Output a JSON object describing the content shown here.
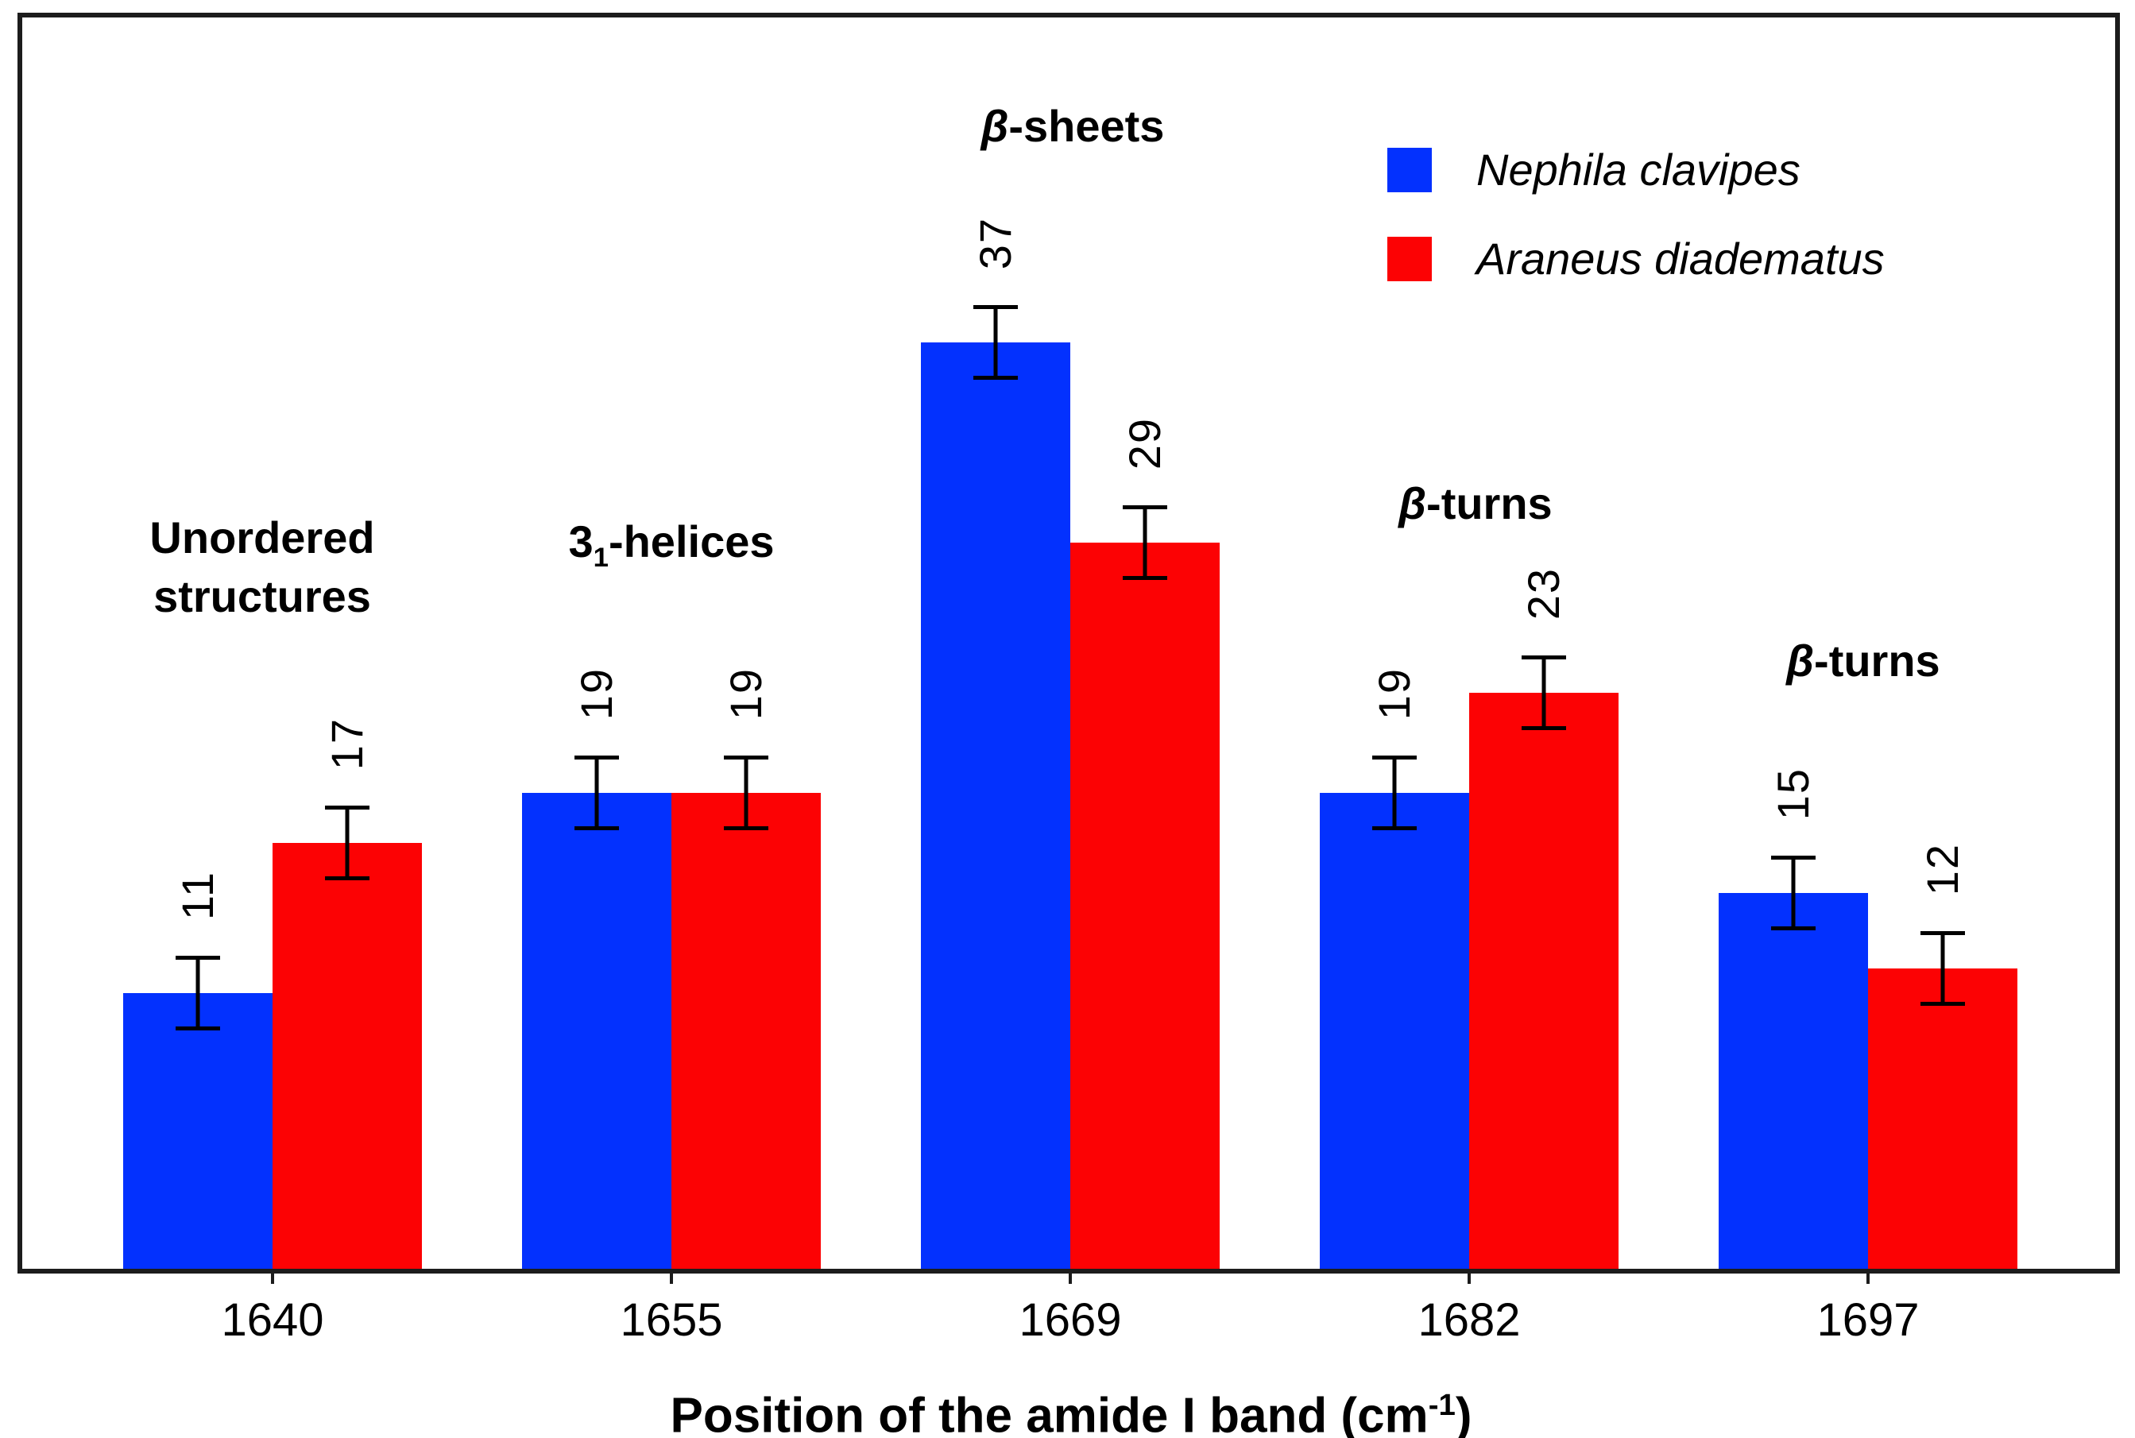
{
  "chart_data": {
    "type": "bar",
    "title": "",
    "categories": [
      "1640",
      "1655",
      "1669",
      "1682",
      "1697"
    ],
    "series": [
      {
        "name": "Nephila clavipes",
        "color": "#0331fe",
        "values": [
          11,
          19,
          37,
          19,
          15
        ],
        "errors": [
          1.5,
          1.5,
          1.5,
          1.5,
          1.5
        ]
      },
      {
        "name": "Araneus diadematus",
        "color": "#fc0204",
        "values": [
          17,
          19,
          29,
          23,
          12
        ],
        "errors": [
          1.5,
          1.5,
          1.5,
          1.5,
          1.5
        ]
      }
    ],
    "bar_value_labels": [
      "11",
      "19",
      "37",
      "19",
      "15",
      "17",
      "19",
      "29",
      "23",
      "12"
    ],
    "xlabel_segments": [
      {
        "t": "Position of the amide I band (cm"
      },
      {
        "t": "-1",
        "sup": true
      },
      {
        "t": ")"
      }
    ],
    "ylim": [
      0,
      50
    ],
    "grid": false,
    "error_bar_color": "#000000",
    "legend_position": "top-right",
    "legend_text_style": "italic",
    "annotations": [
      {
        "lines": [
          [
            {
              "t": "Unordered"
            }
          ],
          [
            {
              "t": "structures"
            }
          ]
        ],
        "x": 330,
        "y": 640
      },
      {
        "lines": [
          [
            {
              "t": "3"
            },
            {
              "t": "1",
              "sub": true
            },
            {
              "t": "-helices"
            }
          ]
        ],
        "x": 845,
        "y": 645
      },
      {
        "lines": [
          [
            {
              "t": "β",
              "italic": true
            },
            {
              "t": "-sheets"
            }
          ]
        ],
        "x": 1350,
        "y": 122
      },
      {
        "lines": [
          [
            {
              "t": "β",
              "italic": true
            },
            {
              "t": "-turns"
            }
          ]
        ],
        "x": 1857,
        "y": 597
      },
      {
        "lines": [
          [
            {
              "t": "β",
              "italic": true
            },
            {
              "t": "-turns"
            }
          ]
        ],
        "x": 2345,
        "y": 795
      }
    ],
    "frame_color": "#1c1c1c",
    "background_color": "#ffffff",
    "text_color": "#000000"
  }
}
